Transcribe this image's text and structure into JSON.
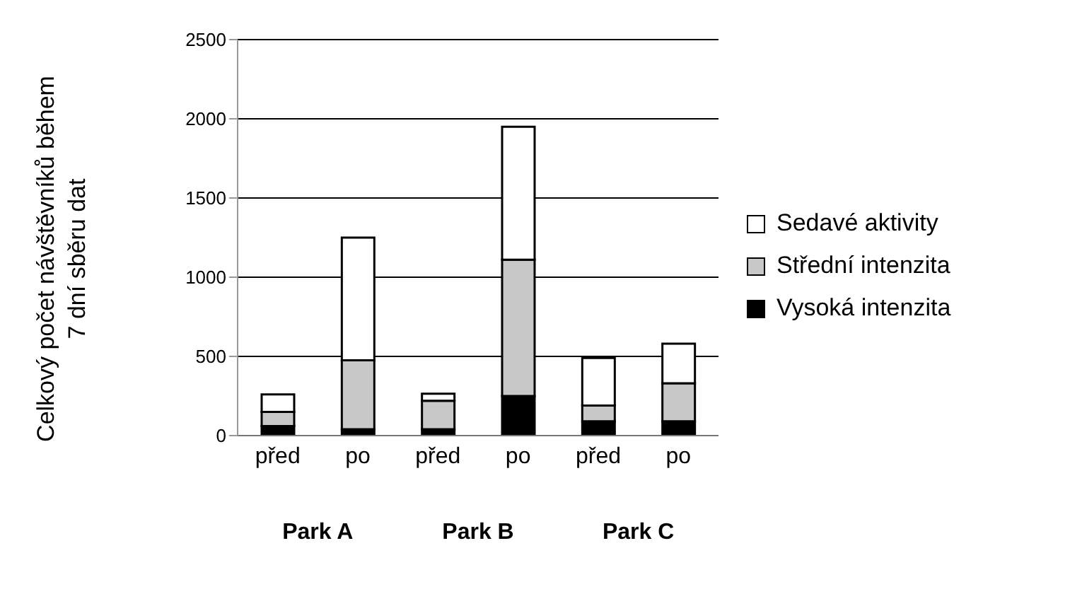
{
  "chart_data": {
    "type": "bar",
    "stacked": true,
    "ylabel": "Celkový počet návštěvníků během\n7 dní sběru dat",
    "categories": [
      "před",
      "po",
      "před",
      "po",
      "před",
      "po"
    ],
    "series": [
      {
        "name": "Vysoká intenzita",
        "color": "#000000",
        "values": [
          60,
          40,
          40,
          250,
          90,
          90
        ]
      },
      {
        "name": "Střední intenzita",
        "color": "#c8c8c8",
        "values": [
          90,
          435,
          180,
          860,
          100,
          240
        ]
      },
      {
        "name": "Sedavé aktivity",
        "color": "#ffffff",
        "values": [
          110,
          775,
          45,
          840,
          300,
          250
        ]
      }
    ],
    "annotations": [
      "Park A",
      "Park B",
      "Park C"
    ],
    "ylim": [
      0,
      2500
    ],
    "yticks": [
      0,
      500,
      1000,
      1500,
      2000,
      2500
    ],
    "grid": "y",
    "legend": "right"
  }
}
